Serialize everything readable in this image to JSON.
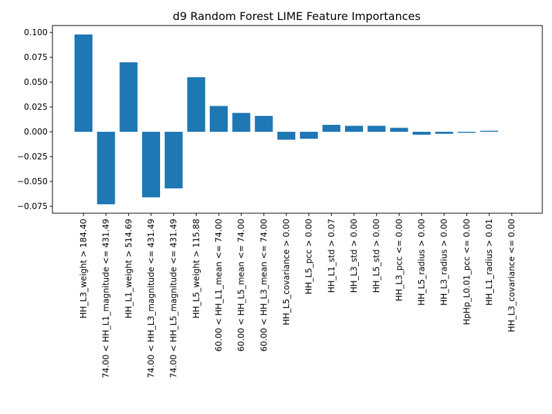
{
  "chart_data": {
    "type": "bar",
    "title": "d9 Random Forest LIME Feature Importances",
    "xlabel": "",
    "ylabel": "",
    "ylim": [
      -0.082,
      0.107
    ],
    "yticks": [
      -0.075,
      -0.05,
      -0.025,
      0.0,
      0.025,
      0.05,
      0.075,
      0.1
    ],
    "ytick_labels": [
      "−0.075",
      "−0.050",
      "−0.025",
      "0.000",
      "0.025",
      "0.050",
      "0.075",
      "0.100"
    ],
    "grid": false,
    "bar_color": "#1f77b4",
    "categories": [
      "HH_L3_weight > 184.40",
      "74.00 < HH_L1_magnitude <= 431.49",
      "HH_L1_weight > 514.69",
      "74.00 < HH_L3_magnitude <= 431.49",
      "74.00 < HH_L5_magnitude <= 431.49",
      "HH_L5_weight > 115.88",
      "60.00 < HH_L1_mean <= 74.00",
      "60.00 < HH_L5_mean <= 74.00",
      "60.00 < HH_L3_mean <= 74.00",
      "HH_L5_covariance > 0.00",
      "HH_L5_pcc > 0.00",
      "HH_L1_std > 0.07",
      "HH_L3_std > 0.00",
      "HH_L5_std > 0.00",
      "HH_L3_pcc <= 0.00",
      "HH_L5_radius > 0.00",
      "HH_L3_radius > 0.00",
      "HpHp_L0.01_pcc <= 0.00",
      "HH_L1_radius > 0.01",
      "HH_L3_covariance <= 0.00"
    ],
    "values": [
      0.098,
      -0.073,
      0.07,
      -0.066,
      -0.057,
      0.055,
      0.026,
      0.019,
      0.016,
      -0.008,
      -0.007,
      0.007,
      0.006,
      0.006,
      0.004,
      -0.003,
      -0.002,
      -0.001,
      0.001,
      0.0
    ]
  }
}
